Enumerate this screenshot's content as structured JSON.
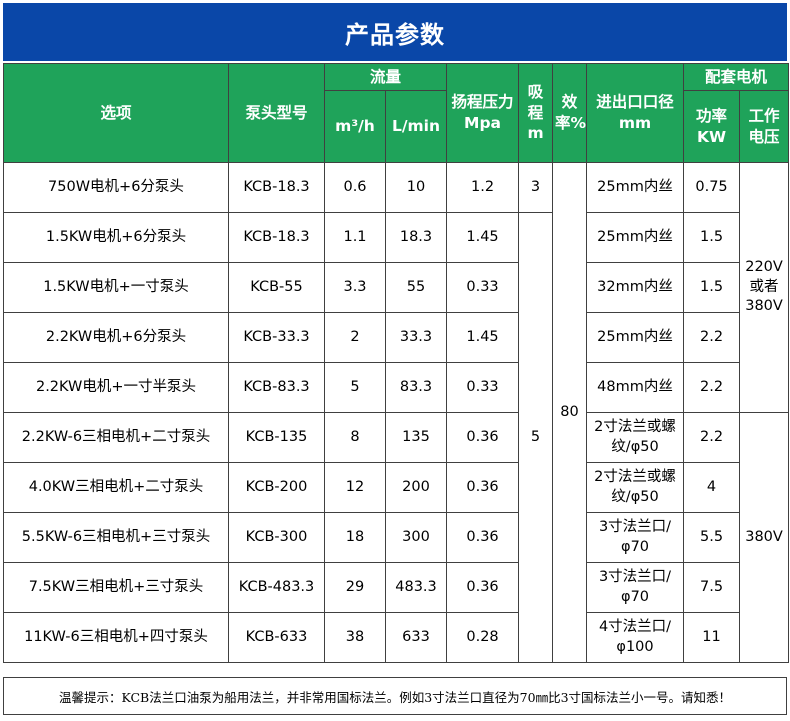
{
  "title": "产品参数",
  "colors": {
    "title_bg": "#0a47a8",
    "header_bg": "#1fa35a",
    "header_text": "#ffffff",
    "border": "#404040"
  },
  "header": {
    "option": "选项",
    "model": "泵头型号",
    "flow": "流量",
    "flow_m3h": "m³/h",
    "flow_lmin": "L/min",
    "pressure": "扬程压力Mpa",
    "suction": "吸程m",
    "efficiency": "效率%",
    "port": "进出口口径mm",
    "motor": "配套电机",
    "power": "功率KW",
    "voltage": "工作电压"
  },
  "rows": [
    {
      "option": "750W电机+6分泵头",
      "model": "KCB-18.3",
      "m3h": "0.6",
      "lmin": "10",
      "pressure": "1.2",
      "port": "25mm内丝",
      "power": "0.75"
    },
    {
      "option": "1.5KW电机+6分泵头",
      "model": "KCB-18.3",
      "m3h": "1.1",
      "lmin": "18.3",
      "pressure": "1.45",
      "port": "25mm内丝",
      "power": "1.5"
    },
    {
      "option": "1.5KW电机+一寸泵头",
      "model": "KCB-55",
      "m3h": "3.3",
      "lmin": "55",
      "pressure": "0.33",
      "port": "32mm内丝",
      "power": "1.5"
    },
    {
      "option": "2.2KW电机+6分泵头",
      "model": "KCB-33.3",
      "m3h": "2",
      "lmin": "33.3",
      "pressure": "1.45",
      "port": "25mm内丝",
      "power": "2.2"
    },
    {
      "option": "2.2KW电机+一寸半泵头",
      "model": "KCB-83.3",
      "m3h": "5",
      "lmin": "83.3",
      "pressure": "0.33",
      "port": "48mm内丝",
      "power": "2.2"
    },
    {
      "option": "2.2KW-6三相电机+二寸泵头",
      "model": "KCB-135",
      "m3h": "8",
      "lmin": "135",
      "pressure": "0.36",
      "port": "2寸法兰或螺纹/φ50",
      "power": "2.2"
    },
    {
      "option": "4.0KW三相电机+二寸泵头",
      "model": "KCB-200",
      "m3h": "12",
      "lmin": "200",
      "pressure": "0.36",
      "port": "2寸法兰或螺纹/φ50",
      "power": "4"
    },
    {
      "option": "5.5KW-6三相电机+三寸泵头",
      "model": "KCB-300",
      "m3h": "18",
      "lmin": "300",
      "pressure": "0.36",
      "port": "3寸法兰口/φ70",
      "power": "5.5"
    },
    {
      "option": "7.5KW三相电机+三寸泵头",
      "model": "KCB-483.3",
      "m3h": "29",
      "lmin": "483.3",
      "pressure": "0.36",
      "port": "3寸法兰口/φ70",
      "power": "7.5"
    },
    {
      "option": "11KW-6三相电机+四寸泵头",
      "model": "KCB-633",
      "m3h": "38",
      "lmin": "633",
      "pressure": "0.28",
      "port": "4寸法兰口/φ100",
      "power": "11"
    }
  ],
  "suction_values": {
    "first": "3",
    "rest": "5"
  },
  "efficiency_value": "80",
  "voltage_values": {
    "single_or_three": "220V或者380V",
    "three": "380V"
  },
  "footnote": "温馨提示：KCB法兰口油泵为船用法兰，并非常用国标法兰。例如3寸法兰口直径为70㎜比3寸国标法兰小一号。请知悉！"
}
